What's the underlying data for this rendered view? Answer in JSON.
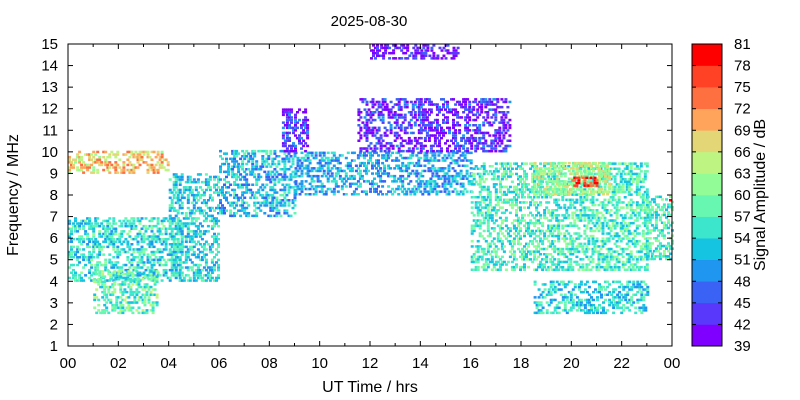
{
  "chart_data": {
    "type": "heatmap",
    "title": "2025-08-30",
    "xlabel": "UT Time / hrs",
    "ylabel": "Frequency / MHz",
    "colorbar_label": "Signal Amplitude / dB",
    "xlim": [
      0,
      24
    ],
    "ylim": [
      1,
      15
    ],
    "x_ticks": [
      "00",
      "02",
      "04",
      "06",
      "08",
      "10",
      "12",
      "14",
      "16",
      "18",
      "20",
      "22",
      "00"
    ],
    "y_ticks": [
      "1",
      "2",
      "3",
      "4",
      "5",
      "6",
      "7",
      "8",
      "9",
      "10",
      "11",
      "12",
      "13",
      "14",
      "15"
    ],
    "colorbar_ticks": [
      "39",
      "42",
      "45",
      "48",
      "51",
      "54",
      "57",
      "60",
      "63",
      "66",
      "69",
      "72",
      "75",
      "78",
      "81"
    ],
    "colorbar_range": [
      39,
      81
    ],
    "colorbar_colors": [
      "#8000ff",
      "#5a38fb",
      "#3a62f5",
      "#1f96f0",
      "#14c4e0",
      "#3be6cd",
      "#68f7b0",
      "#92fd97",
      "#bef582",
      "#e2d676",
      "#ffa45a",
      "#ff7040",
      "#ff4125",
      "#ff0000"
    ],
    "series": [
      {
        "x": [
          0.0,
          4.5
        ],
        "y_range": [
          4.0,
          7.0
        ],
        "value": 55
      },
      {
        "x": [
          0.0,
          4.0
        ],
        "y_range": [
          9.0,
          10.0
        ],
        "value": 68
      },
      {
        "x": [
          1.0,
          3.5
        ],
        "y_range": [
          2.5,
          4.5
        ],
        "value": 58
      },
      {
        "x": [
          4.0,
          6.0
        ],
        "y_range": [
          4.0,
          9.0
        ],
        "value": 54
      },
      {
        "x": [
          6.0,
          9.0
        ],
        "y_range": [
          7.0,
          10.0
        ],
        "value": 52
      },
      {
        "x": [
          8.5,
          9.5
        ],
        "y_range": [
          10.0,
          12.0
        ],
        "value": 44
      },
      {
        "x": [
          9.0,
          16.0
        ],
        "y_range": [
          8.0,
          10.0
        ],
        "value": 51
      },
      {
        "x": [
          11.5,
          17.5
        ],
        "y_range": [
          10.0,
          12.5
        ],
        "value": 43
      },
      {
        "x": [
          12.0,
          15.5
        ],
        "y_range": [
          14.3,
          15.0
        ],
        "value": 41
      },
      {
        "x": [
          16.0,
          23.0
        ],
        "y_range": [
          4.5,
          9.5
        ],
        "value": 57
      },
      {
        "x": [
          18.5,
          21.5
        ],
        "y_range": [
          8.0,
          9.5
        ],
        "value": 63
      },
      {
        "x": [
          18.5,
          23.0
        ],
        "y_range": [
          2.5,
          4.0
        ],
        "value": 54
      },
      {
        "x": [
          20.0,
          21.0
        ],
        "y_range": [
          8.4,
          8.8
        ],
        "value": 78
      },
      {
        "x": [
          23.0,
          24.0
        ],
        "y_range": [
          5.0,
          8.0
        ],
        "value": 57
      },
      {
        "x": [
          23.8,
          24.0
        ],
        "y_range": [
          7.6,
          7.8
        ],
        "value": 80
      }
    ]
  }
}
